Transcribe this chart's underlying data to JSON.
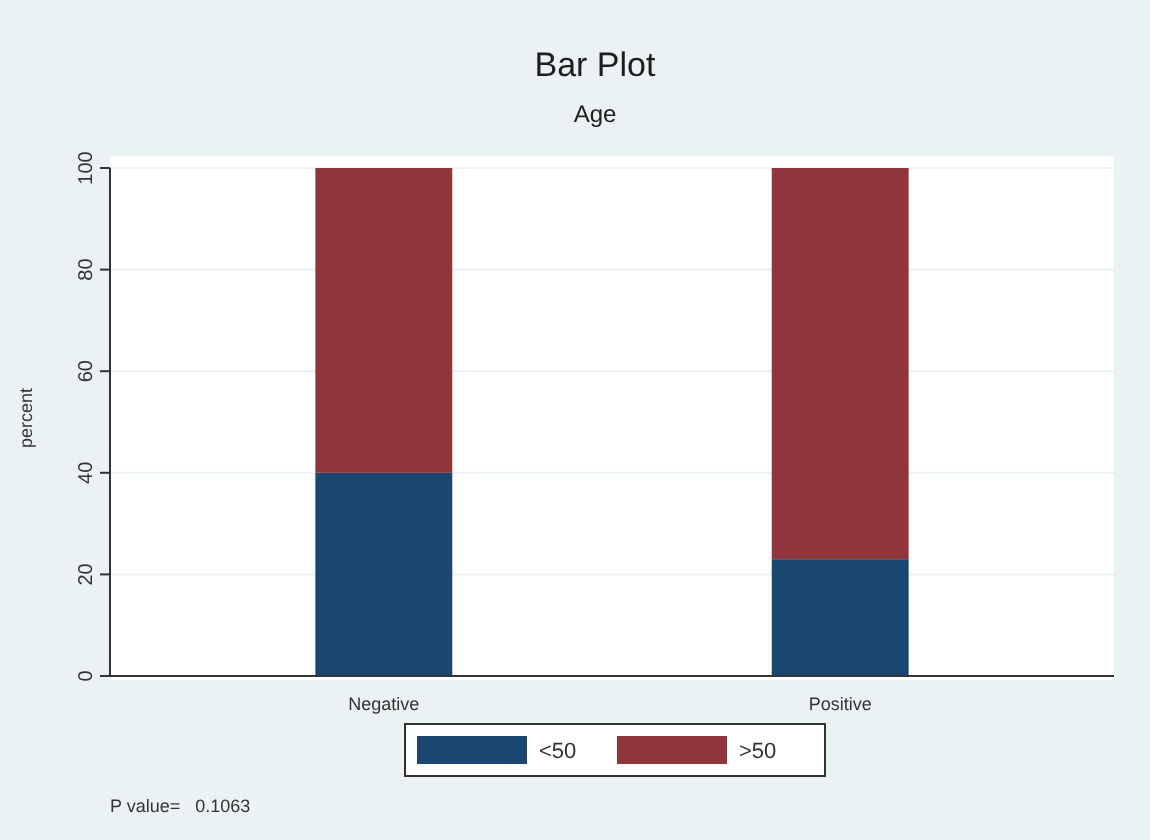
{
  "chart_data": {
    "type": "bar",
    "title": "Bar Plot",
    "subtitle": "Age",
    "ylabel": "percent",
    "stacked": true,
    "categories": [
      "Negative",
      "Positive"
    ],
    "series": [
      {
        "name": "<50",
        "color": "#1a476f",
        "values": [
          40,
          23
        ]
      },
      {
        "name": ">50",
        "color": "#90353b",
        "values": [
          60,
          77
        ]
      }
    ],
    "ylim": [
      0,
      100
    ],
    "yticks": [
      0,
      20,
      40,
      60,
      80,
      100
    ],
    "grid": "y",
    "legend": "bottom",
    "annotations": [
      "P value=   0.1063"
    ]
  }
}
